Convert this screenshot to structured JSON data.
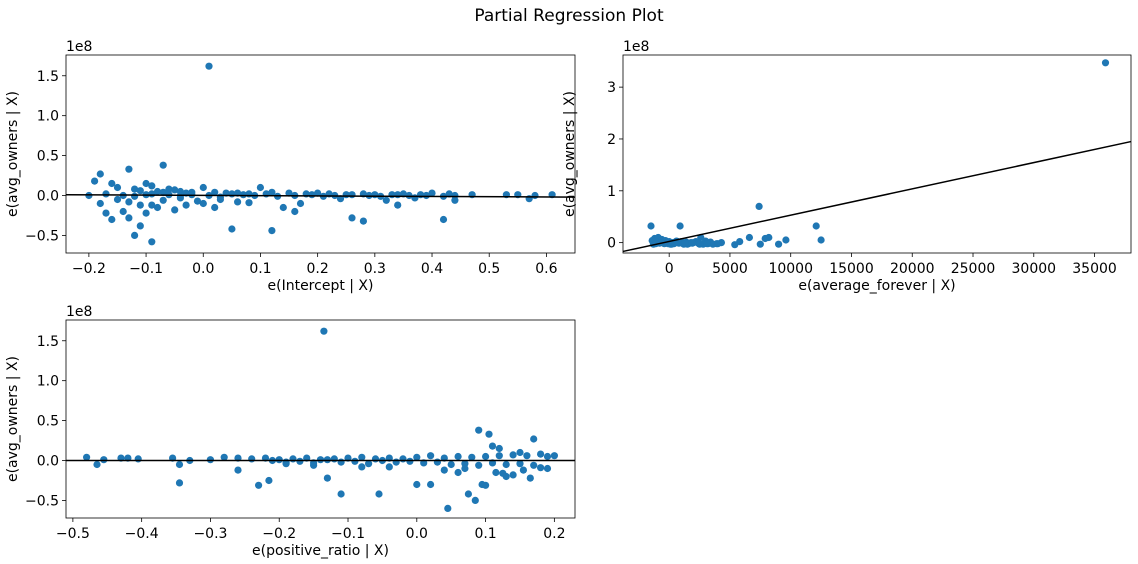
{
  "figure": {
    "title": "Partial Regression Plot"
  },
  "colors": {
    "points": "#1f77b4",
    "fit_line": "#000000",
    "axes": "#000000"
  },
  "chart_data": [
    {
      "id": "intercept",
      "type": "scatter",
      "title": "",
      "xlabel": "e(Intercept | X)",
      "ylabel": "e(avg_owners | X)",
      "y_offset_label": "1e8",
      "xlim": [
        -0.24,
        0.65
      ],
      "ylim": [
        -0.72,
        1.76
      ],
      "y_unit_scale": 100000000,
      "xticks": [
        -0.2,
        -0.1,
        0.0,
        0.1,
        0.2,
        0.3,
        0.4,
        0.5,
        0.6
      ],
      "xtick_labels": [
        "−0.2",
        "−0.1",
        "0.0",
        "0.1",
        "0.2",
        "0.3",
        "0.4",
        "0.5",
        "0.6"
      ],
      "yticks": [
        -0.5,
        0.0,
        0.5,
        1.0,
        1.5
      ],
      "ytick_labels": [
        "−0.5",
        "0.0",
        "0.5",
        "1.0",
        "1.5"
      ],
      "fit_line": {
        "x": [
          -0.24,
          0.65
        ],
        "y": [
          0.01,
          -0.02
        ]
      },
      "points": {
        "x": [
          0.01,
          -0.07,
          -0.13,
          -0.18,
          -0.19,
          -0.16,
          -0.15,
          -0.12,
          -0.11,
          -0.1,
          -0.09,
          -0.08,
          -0.07,
          -0.06,
          -0.05,
          -0.04,
          -0.03,
          -0.02,
          0.0,
          0.02,
          0.04,
          0.05,
          0.06,
          0.08,
          0.1,
          0.12,
          0.15,
          0.18,
          0.2,
          0.22,
          0.25,
          0.28,
          0.3,
          0.33,
          0.35,
          0.38,
          0.4,
          0.43,
          0.47,
          0.53,
          0.55,
          0.58,
          0.61,
          -0.2,
          -0.17,
          -0.14,
          -0.12,
          -0.1,
          -0.09,
          -0.06,
          -0.04,
          -0.02,
          0.01,
          0.03,
          0.07,
          0.09,
          0.11,
          0.13,
          0.16,
          0.19,
          0.21,
          0.23,
          0.26,
          0.29,
          0.31,
          0.34,
          0.36,
          0.39,
          0.42,
          0.44,
          -0.12,
          -0.09,
          -0.11,
          -0.17,
          -0.13,
          -0.16,
          -0.14,
          -0.11,
          -0.1,
          -0.08,
          -0.05,
          -0.03,
          0.0,
          0.02,
          0.05,
          0.06,
          0.12,
          0.16,
          0.26,
          0.28,
          0.34,
          0.42,
          0.44,
          0.57,
          -0.18,
          -0.15,
          -0.13,
          -0.09,
          -0.07,
          -0.04,
          -0.01,
          0.03,
          0.08,
          0.14,
          0.17,
          0.24,
          0.32,
          0.37
        ],
        "y": [
          1.62,
          0.38,
          0.33,
          0.27,
          0.18,
          0.15,
          0.1,
          0.08,
          0.06,
          0.15,
          0.12,
          0.05,
          0.04,
          0.08,
          0.07,
          0.05,
          0.03,
          0.04,
          0.1,
          0.04,
          0.03,
          0.02,
          0.03,
          0.02,
          0.1,
          0.04,
          0.03,
          0.02,
          0.03,
          0.02,
          0.01,
          0.02,
          0.01,
          0.01,
          0.02,
          0.01,
          0.03,
          0.02,
          0.01,
          0.01,
          0.01,
          0.0,
          0.01,
          0.0,
          0.02,
          0.0,
          -0.01,
          0.01,
          0.02,
          0.01,
          0.0,
          0.01,
          0.0,
          -0.02,
          0.01,
          0.0,
          0.02,
          -0.01,
          0.0,
          0.01,
          -0.01,
          0.0,
          0.01,
          0.0,
          -0.01,
          0.01,
          0.0,
          0.0,
          -0.01,
          0.0,
          -0.5,
          -0.58,
          -0.38,
          -0.22,
          -0.28,
          -0.3,
          -0.2,
          -0.12,
          -0.22,
          -0.15,
          -0.18,
          -0.12,
          -0.1,
          -0.15,
          -0.42,
          -0.08,
          -0.44,
          -0.2,
          -0.28,
          -0.32,
          -0.12,
          -0.3,
          -0.06,
          -0.04,
          -0.1,
          -0.05,
          -0.08,
          -0.12,
          -0.06,
          -0.03,
          -0.07,
          -0.05,
          -0.09,
          -0.15,
          -0.1,
          -0.04,
          -0.06,
          -0.03
        ]
      }
    },
    {
      "id": "average_forever",
      "type": "scatter",
      "title": "",
      "xlabel": "e(average_forever | X)",
      "ylabel": "e(avg_owners | X)",
      "y_offset_label": "1e8",
      "xlim": [
        -3800,
        38000
      ],
      "ylim": [
        -0.2,
        3.62
      ],
      "y_unit_scale": 100000000,
      "xticks": [
        0,
        5000,
        10000,
        15000,
        20000,
        25000,
        30000,
        35000
      ],
      "xtick_labels": [
        "0",
        "5000",
        "10000",
        "15000",
        "20000",
        "25000",
        "30000",
        "35000"
      ],
      "yticks": [
        0,
        1,
        2,
        3
      ],
      "ytick_labels": [
        "0",
        "1",
        "2",
        "3"
      ],
      "fit_line": {
        "x": [
          -3800,
          38000
        ],
        "y": [
          -0.17,
          1.95
        ]
      },
      "points": {
        "x": [
          35900,
          7400,
          12100,
          12500,
          9600,
          8200,
          7900,
          7500,
          6600,
          5800,
          5400,
          9000,
          900,
          -1500,
          -1200,
          -900,
          -600,
          -300,
          0,
          300,
          600,
          1000,
          1400,
          1800,
          2200,
          2600,
          3000,
          3400,
          3900,
          4300,
          -1400,
          -1000,
          -700,
          -400,
          -100,
          200,
          500,
          800,
          1200,
          1600,
          2000,
          2400,
          2800,
          3200,
          3600,
          4000,
          -1300,
          -800,
          -200,
          400,
          1100,
          1500,
          -1100,
          100,
          700,
          1300,
          1900,
          2500,
          3100
        ],
        "y": [
          3.47,
          0.7,
          0.32,
          0.05,
          0.05,
          0.1,
          0.08,
          -0.03,
          0.1,
          0.02,
          -0.04,
          -0.03,
          0.32,
          0.32,
          0.08,
          0.1,
          0.06,
          0.04,
          0.02,
          0.0,
          0.03,
          0.02,
          0.01,
          0.0,
          0.02,
          0.1,
          0.03,
          0.01,
          -0.02,
          0.0,
          0.04,
          0.02,
          0.0,
          -0.02,
          -0.02,
          -0.03,
          0.01,
          -0.01,
          -0.03,
          -0.02,
          0.0,
          -0.01,
          -0.03,
          -0.02,
          -0.03,
          -0.02,
          -0.03,
          -0.01,
          0.0,
          -0.02,
          -0.01,
          -0.03,
          -0.02,
          -0.03,
          0.02,
          -0.02,
          -0.01,
          -0.03,
          -0.02
        ]
      }
    },
    {
      "id": "positive_ratio",
      "type": "scatter",
      "title": "",
      "xlabel": "e(positive_ratio | X)",
      "ylabel": "e(avg_owners | X)",
      "y_offset_label": "1e8",
      "xlim": [
        -0.51,
        0.23
      ],
      "ylim": [
        -0.72,
        1.76
      ],
      "y_unit_scale": 100000000,
      "xticks": [
        -0.5,
        -0.4,
        -0.3,
        -0.2,
        -0.1,
        0.0,
        0.1,
        0.2
      ],
      "xtick_labels": [
        "−0.5",
        "−0.4",
        "−0.3",
        "−0.2",
        "−0.1",
        "0.0",
        "0.1",
        "0.2"
      ],
      "yticks": [
        -0.5,
        0.0,
        0.5,
        1.0,
        1.5
      ],
      "ytick_labels": [
        "−0.5",
        "0.0",
        "0.5",
        "1.0",
        "1.5"
      ],
      "fit_line": {
        "x": [
          -0.51,
          0.23
        ],
        "y": [
          0.0,
          0.0
        ]
      },
      "points": {
        "x": [
          -0.135,
          0.09,
          0.105,
          0.17,
          0.11,
          0.19,
          0.12,
          0.15,
          -0.48,
          -0.465,
          -0.455,
          -0.43,
          -0.42,
          -0.405,
          -0.355,
          -0.345,
          -0.33,
          -0.3,
          -0.28,
          -0.26,
          -0.24,
          -0.22,
          -0.2,
          -0.18,
          -0.16,
          -0.14,
          -0.12,
          -0.1,
          -0.08,
          -0.06,
          -0.04,
          -0.02,
          0.0,
          0.02,
          0.04,
          0.06,
          0.08,
          0.1,
          0.12,
          0.14,
          0.16,
          0.18,
          0.2,
          -0.21,
          -0.19,
          -0.17,
          -0.15,
          -0.13,
          -0.11,
          -0.09,
          -0.07,
          -0.05,
          -0.03,
          -0.01,
          0.01,
          0.03,
          0.05,
          0.07,
          0.09,
          0.11,
          0.13,
          0.15,
          0.17,
          -0.345,
          -0.26,
          -0.23,
          -0.215,
          -0.13,
          -0.11,
          -0.055,
          0.0,
          0.02,
          0.045,
          0.075,
          0.085,
          0.095,
          0.1,
          0.115,
          0.14,
          0.165,
          0.19,
          0.07,
          0.04,
          -0.04,
          0.06,
          0.13,
          0.18,
          0.155,
          0.125,
          -0.08,
          -0.15,
          -0.19
        ],
        "y": [
          1.62,
          0.38,
          0.33,
          0.27,
          0.18,
          0.05,
          0.15,
          0.1,
          0.04,
          -0.05,
          0.01,
          0.03,
          0.03,
          0.02,
          0.03,
          -0.05,
          0.0,
          0.01,
          0.04,
          0.03,
          0.02,
          0.03,
          0.01,
          0.02,
          0.03,
          0.01,
          0.02,
          0.03,
          0.04,
          0.02,
          0.03,
          0.02,
          0.04,
          0.06,
          0.03,
          0.05,
          0.04,
          0.05,
          0.06,
          0.07,
          0.06,
          0.08,
          0.06,
          0.0,
          -0.02,
          -0.01,
          -0.03,
          0.01,
          -0.02,
          -0.01,
          -0.04,
          0.0,
          -0.02,
          -0.01,
          -0.03,
          -0.02,
          -0.05,
          -0.04,
          -0.06,
          -0.03,
          -0.05,
          -0.04,
          -0.06,
          -0.28,
          -0.12,
          -0.31,
          -0.25,
          -0.22,
          -0.42,
          -0.42,
          -0.3,
          -0.3,
          -0.6,
          -0.42,
          -0.5,
          -0.3,
          -0.31,
          -0.15,
          -0.18,
          -0.22,
          -0.1,
          -0.1,
          -0.12,
          -0.08,
          -0.15,
          -0.2,
          -0.09,
          -0.12,
          -0.16,
          -0.08,
          -0.06,
          -0.04
        ]
      }
    }
  ]
}
